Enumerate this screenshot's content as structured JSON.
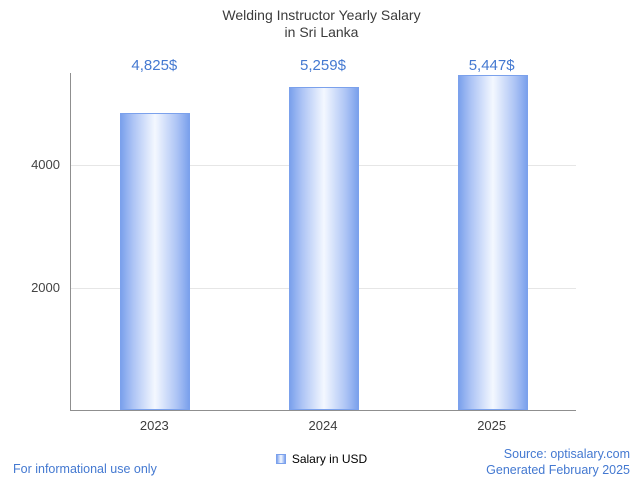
{
  "chart_data": {
    "type": "bar",
    "title": "Welding Instructor Yearly Salary in Sri Lanka",
    "title_lines": [
      "Welding Instructor Yearly Salary",
      "in Sri Lanka"
    ],
    "categories": [
      "2023",
      "2024",
      "2025"
    ],
    "values": [
      4825,
      5259,
      5447
    ],
    "value_labels": [
      "4,825$",
      "5,259$",
      "5,447$"
    ],
    "series_name": "Salary in USD",
    "xlabel": "",
    "ylabel": "",
    "yticks": [
      2000,
      4000
    ],
    "ylim": [
      0,
      5500
    ],
    "grid": true,
    "legend_position": "bottom"
  },
  "footer": {
    "left": "For informational use only",
    "source": "Source: optisalary.com",
    "generated": "Generated February 2025"
  },
  "colors": {
    "accent_blue": "#4479d1",
    "title_gray": "#3b3b3b",
    "bar_edge": "#7ba1ec",
    "bar_mid": "#adc4f5",
    "bar_center": "#f4f8ff",
    "axis": "#8f8f8f",
    "grid": "#e6e6e6"
  }
}
